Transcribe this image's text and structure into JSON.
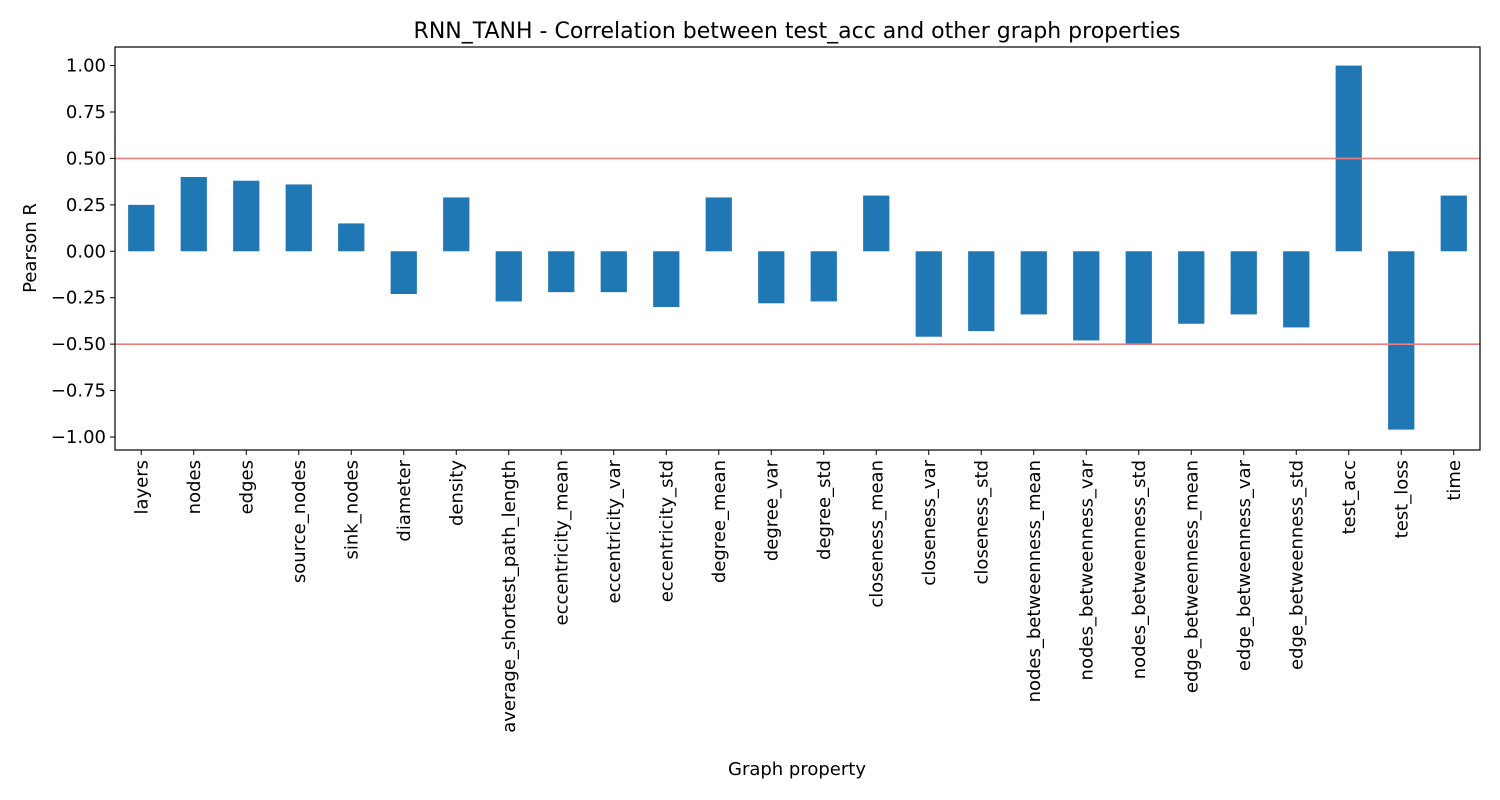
{
  "chart_data": {
    "type": "bar",
    "title": "RNN_TANH - Correlation between test_acc and other graph properties",
    "xlabel": "Graph property",
    "ylabel": "Pearson R",
    "ylim": [
      -1.07,
      1.1
    ],
    "yticks": [
      1.0,
      0.75,
      0.5,
      0.25,
      0.0,
      -0.25,
      -0.5,
      -0.75,
      -1.0
    ],
    "ytick_labels": [
      "1.00",
      "0.75",
      "0.50",
      "0.25",
      "0.00",
      "−0.25",
      "−0.50",
      "−0.75",
      "−1.00"
    ],
    "reference_lines": [
      0.5,
      -0.5
    ],
    "bar_color": "#1f77b4",
    "reference_line_color": "#f08080",
    "categories": [
      "layers",
      "nodes",
      "edges",
      "source_nodes",
      "sink_nodes",
      "diameter",
      "density",
      "average_shortest_path_length",
      "eccentricity_mean",
      "eccentricity_var",
      "eccentricity_std",
      "degree_mean",
      "degree_var",
      "degree_std",
      "closeness_mean",
      "closeness_var",
      "closeness_std",
      "nodes_betweenness_mean",
      "nodes_betweenness_var",
      "nodes_betweenness_std",
      "edge_betweenness_mean",
      "edge_betweenness_var",
      "edge_betweenness_std",
      "test_acc",
      "test_loss",
      "time"
    ],
    "values": [
      0.25,
      0.4,
      0.38,
      0.36,
      0.15,
      -0.23,
      0.29,
      -0.27,
      -0.22,
      -0.22,
      -0.3,
      0.29,
      -0.28,
      -0.27,
      0.3,
      -0.46,
      -0.43,
      -0.34,
      -0.48,
      -0.5,
      -0.39,
      -0.34,
      -0.41,
      1.0,
      -0.96,
      0.3
    ]
  }
}
